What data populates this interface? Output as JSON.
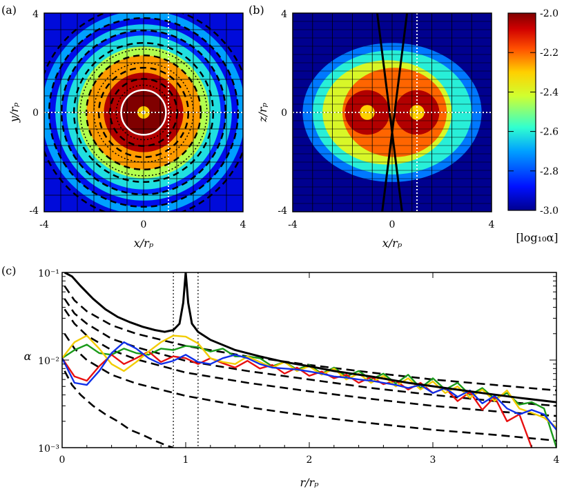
{
  "colorbar": {
    "label": "[log₁₀α]",
    "ticks": [
      "-2.0",
      "-2.2",
      "-2.4",
      "-2.6",
      "-2.8",
      "-3.0"
    ],
    "range": [
      -3.0,
      -2.0
    ]
  },
  "panel_a": {
    "tag": "(a)",
    "xlabel": "x/rₚ",
    "ylabel": "y/rₚ",
    "xticks": [
      "-4",
      "0",
      "4"
    ],
    "yticks": [
      "4",
      "0",
      "-4"
    ],
    "xlim": [
      -4,
      4
    ],
    "ylim": [
      -4,
      4
    ],
    "grid_divisions": 12,
    "dotted_x": 1,
    "dotted_y": 0,
    "white_circle_radius": 0.9,
    "dashed_contour_radii": [
      0.9,
      1.35,
      1.8,
      2.3,
      2.8,
      3.3,
      3.8,
      4.3
    ],
    "dotted_contour_radii": [
      1.1,
      2.0,
      2.55
    ],
    "rings": [
      {
        "r_in": 0.0,
        "r_out": 0.9,
        "log_alpha": -2.0
      },
      {
        "r_in": 0.9,
        "r_out": 1.6,
        "log_alpha": -2.05
      },
      {
        "r_in": 1.6,
        "r_out": 2.3,
        "log_alpha": -2.25
      },
      {
        "r_in": 2.3,
        "r_out": 2.65,
        "log_alpha": -2.45
      },
      {
        "r_in": 2.65,
        "r_out": 3.1,
        "log_alpha": -2.62
      },
      {
        "r_in": 3.1,
        "r_out": 3.3,
        "log_alpha": -2.85
      },
      {
        "r_in": 3.3,
        "r_out": 3.55,
        "log_alpha": -2.65
      },
      {
        "r_in": 3.55,
        "r_out": 3.8,
        "log_alpha": -2.9
      },
      {
        "r_in": 3.8,
        "r_out": 4.1,
        "log_alpha": -2.7
      }
    ]
  },
  "panel_b": {
    "tag": "(b)",
    "xlabel": "x/rₚ",
    "ylabel": "z/rₚ",
    "xticks": [
      "-4",
      "0",
      "4"
    ],
    "yticks": [
      "4",
      "0",
      "-4"
    ],
    "xlim": [
      -4,
      4
    ],
    "ylim": [
      -4,
      4
    ],
    "grid_divisions": 10,
    "dotted_x": 1,
    "dotted_y": 0,
    "disk_semi_axes": [
      3.6,
      2.8
    ],
    "blobs": [
      {
        "x": 0.0,
        "z": 0.0,
        "rx": 3.6,
        "rz": 2.8,
        "log_alpha": -2.75
      },
      {
        "x": 0.0,
        "z": 0.0,
        "rx": 3.2,
        "rz": 2.5,
        "log_alpha": -2.6
      },
      {
        "x": -0.2,
        "z": 0.0,
        "rx": 2.6,
        "rz": 2.1,
        "log_alpha": -2.4
      },
      {
        "x": 0.1,
        "z": 0.0,
        "rx": 2.1,
        "rz": 1.8,
        "log_alpha": -2.2
      },
      {
        "x": -1.0,
        "z": 0.0,
        "rx": 0.9,
        "rz": 0.9,
        "log_alpha": -2.05
      },
      {
        "x": 1.0,
        "z": 0.0,
        "rx": 0.9,
        "rz": 0.9,
        "log_alpha": -2.05
      },
      {
        "x": -1.0,
        "z": 0.0,
        "rx": 0.3,
        "rz": 0.3,
        "log_alpha": -2.3
      },
      {
        "x": 1.0,
        "z": 0.0,
        "rx": 0.3,
        "rz": 0.3,
        "log_alpha": -2.3
      }
    ],
    "cone_lines": [
      [
        -0.6,
        4,
        0.4,
        -4
      ],
      [
        0.6,
        4,
        -0.4,
        -4
      ]
    ]
  },
  "chart_data": {
    "type": "line",
    "tag": "(c)",
    "xlabel": "r/rₚ",
    "ylabel": "α",
    "xlim": [
      0,
      4
    ],
    "ylim": [
      0.001,
      0.1
    ],
    "yscale": "log",
    "xticks": [
      "0",
      "1",
      "2",
      "3",
      "4"
    ],
    "xtick_values": [
      0,
      1,
      2,
      3,
      4
    ],
    "yticks": [
      "10⁻¹",
      "10⁻²",
      "10⁻³"
    ],
    "ytick_values": [
      0.1,
      0.01,
      0.001
    ],
    "vlines": [
      0.9,
      1.1
    ],
    "upper_envelope": {
      "name": "solid",
      "x": [
        0.02,
        0.08,
        0.15,
        0.25,
        0.35,
        0.45,
        0.55,
        0.65,
        0.75,
        0.83,
        0.9,
        0.95,
        0.98,
        1.0,
        1.02,
        1.05,
        1.1,
        1.2,
        1.4,
        1.6,
        1.8,
        2.0,
        2.2,
        2.5,
        2.8,
        3.1,
        3.4,
        3.7,
        4.0
      ],
      "y": [
        0.1,
        0.09,
        0.07,
        0.05,
        0.038,
        0.031,
        0.027,
        0.024,
        0.022,
        0.021,
        0.022,
        0.026,
        0.045,
        0.1,
        0.045,
        0.026,
        0.021,
        0.017,
        0.013,
        0.011,
        0.0095,
        0.0085,
        0.0075,
        0.0065,
        0.0055,
        0.0048,
        0.0042,
        0.0037,
        0.0033
      ]
    },
    "dashed_curves": [
      {
        "x": [
          0.02,
          0.1,
          0.2,
          0.4,
          0.6,
          1.0,
          1.5,
          2.0,
          2.5,
          3.0,
          3.5,
          4.0
        ],
        "y": [
          0.07,
          0.048,
          0.036,
          0.025,
          0.02,
          0.0145,
          0.011,
          0.0088,
          0.0072,
          0.006,
          0.0052,
          0.0045
        ]
      },
      {
        "x": [
          0.02,
          0.1,
          0.2,
          0.4,
          0.6,
          1.0,
          1.5,
          2.0,
          2.5,
          3.0,
          3.5,
          4.0
        ],
        "y": [
          0.05,
          0.034,
          0.026,
          0.0175,
          0.014,
          0.0098,
          0.0075,
          0.006,
          0.0048,
          0.004,
          0.0034,
          0.003
        ]
      },
      {
        "x": [
          0.02,
          0.1,
          0.2,
          0.4,
          0.6,
          1.0,
          1.5,
          2.0,
          2.5,
          3.0,
          3.5,
          4.0
        ],
        "y": [
          0.038,
          0.026,
          0.019,
          0.013,
          0.0102,
          0.0072,
          0.0055,
          0.0044,
          0.0036,
          0.003,
          0.0026,
          0.0023
        ]
      },
      {
        "x": [
          0.02,
          0.1,
          0.2,
          0.4,
          0.6,
          1.0,
          1.5,
          2.0,
          2.5,
          3.0,
          3.5,
          4.0
        ],
        "y": [
          0.02,
          0.0135,
          0.01,
          0.0068,
          0.0054,
          0.0039,
          0.0029,
          0.0023,
          0.0019,
          0.0016,
          0.0014,
          0.0012
        ]
      },
      {
        "x": [
          0.02,
          0.08,
          0.15,
          0.25,
          0.35,
          0.45,
          0.55,
          0.65,
          0.75,
          0.85,
          0.9
        ],
        "y": [
          0.0075,
          0.0052,
          0.004,
          0.003,
          0.0024,
          0.002,
          0.0016,
          0.0014,
          0.0012,
          0.00105,
          0.001
        ]
      }
    ],
    "series": [
      {
        "name": "green",
        "color": "#1a9a1a",
        "x": [
          0,
          0.1,
          0.2,
          0.3,
          0.4,
          0.5,
          0.6,
          0.7,
          0.8,
          0.9,
          1.0,
          1.1,
          1.2,
          1.3,
          1.4,
          1.5,
          1.6,
          1.7,
          1.8,
          1.9,
          2.0,
          2.1,
          2.2,
          2.3,
          2.4,
          2.5,
          2.6,
          2.7,
          2.8,
          2.9,
          3.0,
          3.1,
          3.2,
          3.3,
          3.4,
          3.5,
          3.6,
          3.7,
          3.8,
          3.9,
          4.0
        ],
        "y": [
          0.0105,
          0.013,
          0.015,
          0.012,
          0.0115,
          0.0135,
          0.012,
          0.0115,
          0.0135,
          0.013,
          0.0145,
          0.014,
          0.0125,
          0.0135,
          0.011,
          0.011,
          0.0105,
          0.0085,
          0.0095,
          0.0078,
          0.0088,
          0.007,
          0.0082,
          0.0065,
          0.0075,
          0.006,
          0.007,
          0.0054,
          0.0068,
          0.0048,
          0.0062,
          0.0046,
          0.0055,
          0.004,
          0.0048,
          0.0036,
          0.0042,
          0.0031,
          0.0033,
          0.0028,
          0.001
        ]
      },
      {
        "name": "red",
        "color": "#e81010",
        "x": [
          0,
          0.1,
          0.2,
          0.3,
          0.4,
          0.5,
          0.6,
          0.7,
          0.8,
          0.9,
          1.0,
          1.1,
          1.2,
          1.3,
          1.4,
          1.5,
          1.6,
          1.7,
          1.8,
          1.9,
          2.0,
          2.1,
          2.2,
          2.3,
          2.4,
          2.5,
          2.6,
          2.7,
          2.8,
          2.9,
          3.0,
          3.1,
          3.2,
          3.3,
          3.4,
          3.5,
          3.6,
          3.7,
          3.8
        ],
        "y": [
          0.0105,
          0.0065,
          0.0058,
          0.0085,
          0.0115,
          0.009,
          0.0105,
          0.0125,
          0.0095,
          0.011,
          0.0105,
          0.009,
          0.0105,
          0.0092,
          0.0082,
          0.0098,
          0.008,
          0.0088,
          0.007,
          0.0082,
          0.0066,
          0.0074,
          0.0062,
          0.0068,
          0.0055,
          0.0064,
          0.0053,
          0.0058,
          0.0046,
          0.0055,
          0.0042,
          0.0048,
          0.0034,
          0.0043,
          0.0027,
          0.0038,
          0.002,
          0.0024,
          0.001
        ]
      },
      {
        "name": "yellow",
        "color": "#f2cc00",
        "x": [
          0,
          0.1,
          0.2,
          0.3,
          0.4,
          0.5,
          0.6,
          0.7,
          0.8,
          0.9,
          1.0,
          1.1,
          1.2,
          1.3,
          1.4,
          1.5,
          1.6,
          1.7,
          1.8,
          1.9,
          2.0,
          2.1,
          2.2,
          2.3,
          2.4,
          2.5,
          2.6,
          2.7,
          2.8,
          2.9,
          3.0,
          3.1,
          3.2,
          3.3,
          3.4,
          3.5,
          3.6,
          3.7,
          3.8,
          3.9,
          4.0
        ],
        "y": [
          0.0105,
          0.016,
          0.019,
          0.0135,
          0.009,
          0.0075,
          0.0095,
          0.0125,
          0.016,
          0.019,
          0.0185,
          0.0155,
          0.0105,
          0.0095,
          0.009,
          0.011,
          0.0095,
          0.0082,
          0.0095,
          0.0075,
          0.0085,
          0.0068,
          0.008,
          0.006,
          0.007,
          0.0055,
          0.0066,
          0.005,
          0.0062,
          0.0046,
          0.0057,
          0.0042,
          0.005,
          0.0037,
          0.0046,
          0.0034,
          0.0045,
          0.0028,
          0.0025,
          0.0022,
          0.0017
        ]
      },
      {
        "name": "blue",
        "color": "#1030e8",
        "x": [
          0,
          0.1,
          0.2,
          0.3,
          0.4,
          0.5,
          0.6,
          0.7,
          0.8,
          0.9,
          1.0,
          1.1,
          1.2,
          1.3,
          1.4,
          1.5,
          1.6,
          1.7,
          1.8,
          1.9,
          2.0,
          2.1,
          2.2,
          2.3,
          2.4,
          2.5,
          2.6,
          2.7,
          2.8,
          2.9,
          3.0,
          3.1,
          3.2,
          3.3,
          3.4,
          3.5,
          3.6,
          3.7,
          3.8,
          3.9,
          4.0
        ],
        "y": [
          0.0105,
          0.0055,
          0.0052,
          0.0075,
          0.012,
          0.016,
          0.0135,
          0.0105,
          0.009,
          0.0098,
          0.0115,
          0.0095,
          0.009,
          0.0105,
          0.0115,
          0.0105,
          0.009,
          0.0082,
          0.008,
          0.0078,
          0.0074,
          0.007,
          0.0065,
          0.0063,
          0.006,
          0.0058,
          0.0055,
          0.0052,
          0.0048,
          0.0052,
          0.0042,
          0.0048,
          0.0038,
          0.0045,
          0.0032,
          0.0039,
          0.0028,
          0.0024,
          0.0027,
          0.0024,
          0.0016
        ]
      }
    ]
  }
}
